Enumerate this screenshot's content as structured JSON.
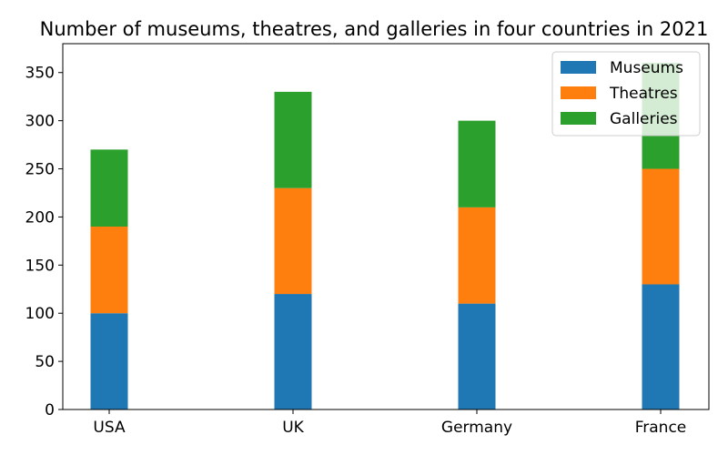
{
  "chart_data": {
    "type": "bar",
    "stacked": true,
    "title": "Number of museums, theatres, and galleries in four countries in 2021",
    "xlabel": "",
    "ylabel": "",
    "categories": [
      "USA",
      "UK",
      "Germany",
      "France"
    ],
    "series": [
      {
        "name": "Museums",
        "color": "#1f77b4",
        "values": [
          100,
          120,
          110,
          130
        ]
      },
      {
        "name": "Theatres",
        "color": "#ff7f0e",
        "values": [
          90,
          110,
          100,
          120
        ]
      },
      {
        "name": "Galleries",
        "color": "#2ca02c",
        "values": [
          80,
          100,
          90,
          110
        ]
      }
    ],
    "ylim": [
      0,
      380
    ],
    "yticks": [
      0,
      50,
      100,
      150,
      200,
      250,
      300,
      350
    ],
    "grid": false,
    "legend_position": "top-right"
  }
}
